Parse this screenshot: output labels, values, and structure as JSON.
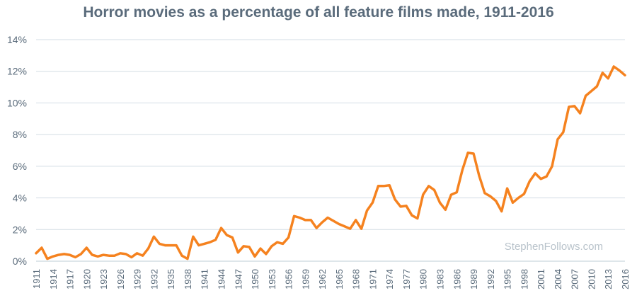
{
  "colors": {
    "title": "#5a6b7b",
    "line": "#f5821f",
    "grid": "#d3dde4",
    "axis_text": "#5a6b7b",
    "watermark": "#b9c3cb"
  },
  "chart_data": {
    "type": "line",
    "title": "Horror movies as a percentage of all feature films made, 1911-2016",
    "xlabel": "",
    "ylabel": "",
    "xlim": [
      1911,
      2016
    ],
    "ylim": [
      0,
      14
    ],
    "yticks": [
      0,
      2,
      4,
      6,
      8,
      10,
      12,
      14
    ],
    "ytick_labels": [
      "0%",
      "2%",
      "4%",
      "6%",
      "8%",
      "10%",
      "12%",
      "14%"
    ],
    "xticks": [
      1911,
      1914,
      1917,
      1920,
      1923,
      1926,
      1929,
      1932,
      1935,
      1938,
      1941,
      1944,
      1947,
      1950,
      1953,
      1956,
      1959,
      1962,
      1965,
      1968,
      1971,
      1974,
      1977,
      1980,
      1983,
      1986,
      1989,
      1992,
      1995,
      1998,
      2001,
      2004,
      2007,
      2010,
      2013,
      2016
    ],
    "grid": "horizontal",
    "legend": "none",
    "series": [
      {
        "x": [
          1911,
          1912,
          1913,
          1914,
          1915,
          1916,
          1917,
          1918,
          1919,
          1920,
          1921,
          1922,
          1923,
          1924,
          1925,
          1926,
          1927,
          1928,
          1929,
          1930,
          1931,
          1932,
          1933,
          1934,
          1935,
          1936,
          1937,
          1938,
          1939,
          1940,
          1941,
          1942,
          1943,
          1944,
          1945,
          1946,
          1947,
          1948,
          1949,
          1950,
          1951,
          1952,
          1953,
          1954,
          1955,
          1956,
          1957,
          1958,
          1959,
          1960,
          1961,
          1962,
          1963,
          1964,
          1965,
          1966,
          1967,
          1968,
          1969,
          1970,
          1971,
          1972,
          1973,
          1974,
          1975,
          1976,
          1977,
          1978,
          1979,
          1980,
          1981,
          1982,
          1983,
          1984,
          1985,
          1986,
          1987,
          1988,
          1989,
          1990,
          1991,
          1992,
          1993,
          1994,
          1995,
          1996,
          1997,
          1998,
          1999,
          2000,
          2001,
          2002,
          2003,
          2004,
          2005,
          2006,
          2007,
          2008,
          2009,
          2010,
          2011,
          2012,
          2013,
          2014,
          2015,
          2016
        ],
        "values": [
          0.5,
          0.85,
          0.15,
          0.3,
          0.4,
          0.45,
          0.4,
          0.25,
          0.45,
          0.85,
          0.4,
          0.3,
          0.4,
          0.35,
          0.35,
          0.5,
          0.45,
          0.25,
          0.5,
          0.35,
          0.8,
          1.55,
          1.1,
          1.0,
          1.0,
          1.0,
          0.35,
          0.15,
          1.55,
          1.0,
          1.1,
          1.2,
          1.35,
          2.1,
          1.65,
          1.5,
          0.55,
          0.95,
          0.9,
          0.3,
          0.8,
          0.45,
          0.95,
          1.2,
          1.1,
          1.5,
          2.85,
          2.75,
          2.6,
          2.6,
          2.1,
          2.45,
          2.75,
          2.55,
          2.35,
          2.2,
          2.05,
          2.6,
          2.05,
          3.2,
          3.7,
          4.75,
          4.75,
          4.8,
          3.9,
          3.45,
          3.5,
          2.9,
          2.7,
          4.2,
          4.75,
          4.5,
          3.7,
          3.25,
          4.2,
          4.35,
          5.75,
          6.85,
          6.8,
          5.4,
          4.3,
          4.1,
          3.8,
          3.15,
          4.6,
          3.7,
          4.0,
          4.25,
          5.05,
          5.55,
          5.2,
          5.35,
          6.0,
          7.7,
          8.15,
          9.75,
          9.8,
          9.35,
          10.45,
          10.75,
          11.05,
          11.9,
          11.55,
          12.3,
          12.05,
          11.75
        ]
      }
    ]
  },
  "watermark": "StephenFollows.com"
}
